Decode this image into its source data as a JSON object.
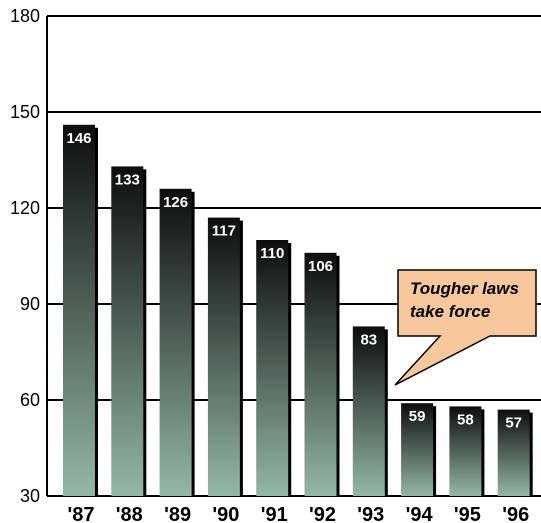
{
  "chart_data": {
    "type": "bar",
    "categories": [
      "'87",
      "'88",
      "'89",
      "'90",
      "'91",
      "'92",
      "'93",
      "'94",
      "'95",
      "'96"
    ],
    "values": [
      146,
      133,
      126,
      117,
      110,
      106,
      83,
      59,
      58,
      57
    ],
    "yticks": [
      30,
      60,
      90,
      120,
      150,
      180
    ],
    "ylim": [
      30,
      180
    ],
    "grid": true,
    "annotation": {
      "lines": [
        "Tougher laws",
        "take force"
      ],
      "points_to": "'94"
    },
    "colors": {
      "bar_top": "#0d0d0d",
      "bar_bottom": "#93b7a8",
      "callout_fill": "#f6c89b",
      "callout_stroke": "#000000"
    }
  }
}
